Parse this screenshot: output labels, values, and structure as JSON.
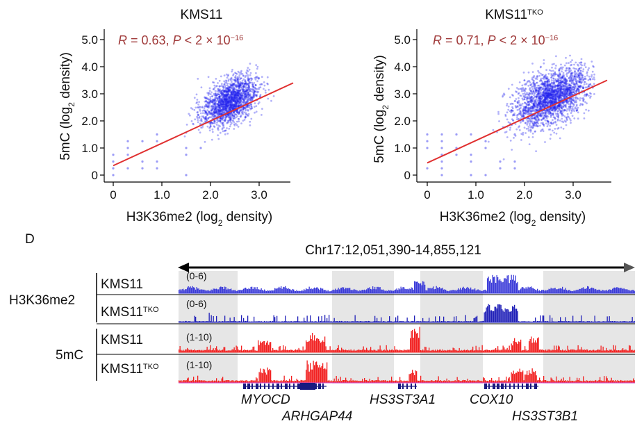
{
  "chart_data": [
    {
      "type": "scatter",
      "title": "KMS11",
      "title_sup": "",
      "annotation": {
        "r_prefix": "R",
        "r_value": " = 0.63, ",
        "p_prefix": "P",
        "p_value": " < 2 × 10",
        "p_exp": "−16"
      },
      "xlabel": "H3K36me2 (log",
      "xlabel_sub": "2",
      "xlabel_end": " density)",
      "ylabel": "5mC (log",
      "ylabel_sub": "2",
      "ylabel_end": " density)",
      "xlim": [
        -0.15,
        3.75
      ],
      "ylim": [
        -0.15,
        5.3
      ],
      "xticks": [
        0,
        1.0,
        2.0,
        3.0
      ],
      "xtick_labels": [
        "0",
        "1.0",
        "2.0",
        "3.0"
      ],
      "yticks": [
        0,
        1.0,
        2.0,
        3.0,
        4.0,
        5.0
      ],
      "ytick_labels": [
        "0",
        "1.0",
        "2.0",
        "3.0",
        "4.0",
        "5.0"
      ],
      "fit_line": {
        "x": [
          0,
          3.7
        ],
        "y": [
          0.35,
          3.4
        ]
      },
      "cluster": {
        "center_x": 2.4,
        "center_y": 2.7,
        "spread_x": 0.28,
        "spread_y": 0.55,
        "n_points": 1800
      },
      "point_color": "#2222ee",
      "line_color": "#e03030",
      "annotation_color": "#a03a3a"
    },
    {
      "type": "scatter",
      "title": "KMS11",
      "title_sup": "TKO",
      "annotation": {
        "r_prefix": "R",
        "r_value": " = 0.71, ",
        "p_prefix": "P",
        "p_value": " < 2 × 10",
        "p_exp": "−16"
      },
      "xlabel": "H3K36me2 (log",
      "xlabel_sub": "2",
      "xlabel_end": " density)",
      "ylabel": "5mC (log",
      "ylabel_sub": "2",
      "ylabel_end": " density)",
      "xlim": [
        -0.15,
        3.75
      ],
      "ylim": [
        -0.15,
        5.3
      ],
      "xticks": [
        0,
        1.0,
        2.0,
        3.0
      ],
      "xtick_labels": [
        "0",
        "1.0",
        "2.0",
        "3.0"
      ],
      "yticks": [
        0,
        1.0,
        2.0,
        3.0,
        4.0,
        5.0
      ],
      "ytick_labels": [
        "0",
        "1.0",
        "2.0",
        "3.0",
        "4.0",
        "5.0"
      ],
      "fit_line": {
        "x": [
          0,
          3.7
        ],
        "y": [
          0.45,
          3.5
        ]
      },
      "cluster": {
        "center_x": 2.55,
        "center_y": 2.85,
        "spread_x": 0.38,
        "spread_y": 0.62,
        "n_points": 2200
      },
      "point_color": "#2222ee",
      "line_color": "#e03030",
      "annotation_color": "#a03a3a"
    }
  ],
  "browser": {
    "panel_label": "D",
    "region": "Chr17:12,051,390-14,855,121",
    "groups": [
      {
        "name": "H3K36me2",
        "tracks": [
          {
            "sample": "KMS11",
            "sup": "",
            "range": "(0-6)",
            "color": "#3b3bd9"
          },
          {
            "sample": "KMS11",
            "sup": "TKO",
            "range": "(0-6)",
            "color": "#2020b8"
          }
        ]
      },
      {
        "name": "5mC",
        "tracks": [
          {
            "sample": "KMS11",
            "sup": "",
            "range": "(1-10)",
            "color": "#f22020"
          },
          {
            "sample": "KMS11",
            "sup": "TKO",
            "range": "(1-10)",
            "color": "#f22020"
          }
        ]
      }
    ],
    "genes": [
      "MYOCD",
      "ARHGAP44",
      "HS3ST3A1",
      "COX10",
      "HS3ST3B1"
    ],
    "shade_color": "#e6e6e6"
  }
}
